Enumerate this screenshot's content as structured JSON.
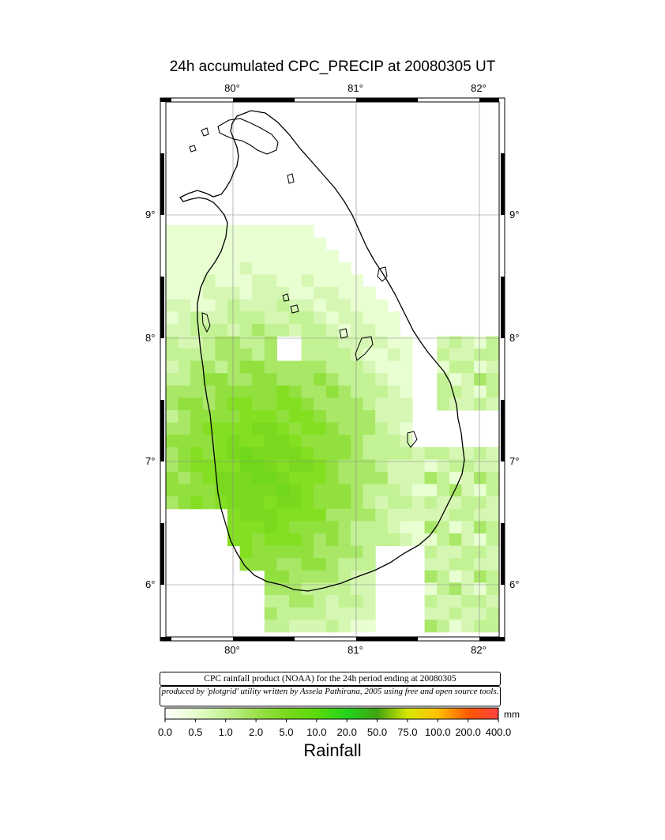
{
  "map": {
    "title": "24h accumulated CPC_PRECIP  at 20080305 UT",
    "lon_ticks": [
      "80°",
      "81°",
      "82°"
    ],
    "lat_ticks": [
      "9°",
      "8°",
      "7°",
      "6°"
    ],
    "extent": {
      "lon": [
        79.5,
        82.2
      ],
      "lat": [
        5.55,
        9.85
      ]
    }
  },
  "caption": {
    "line1": "CPC rainfall product (NOAA) for the 24h period ending at 20080305",
    "line2": "produced by 'plotgrid' utility written by Assela Pathirana, 2005 using free and open source tools."
  },
  "legend": {
    "title": "Rainfall",
    "units": "mm",
    "labels": [
      "0.0",
      "0.5",
      "1.0",
      "2.0",
      "5.0",
      "10.0",
      "20.0",
      "50.0",
      "75.0",
      "100.0",
      "200.0",
      "400.0"
    ],
    "colors": [
      "#ffffff",
      "#e6ffcc",
      "#c3f294",
      "#9be04d",
      "#7ad91f",
      "#5bd90a",
      "#23d41c",
      "#3fa314",
      "#d8e800",
      "#ffc000",
      "#ff5a00",
      "#ff4040",
      "#ff6ad8"
    ]
  }
}
